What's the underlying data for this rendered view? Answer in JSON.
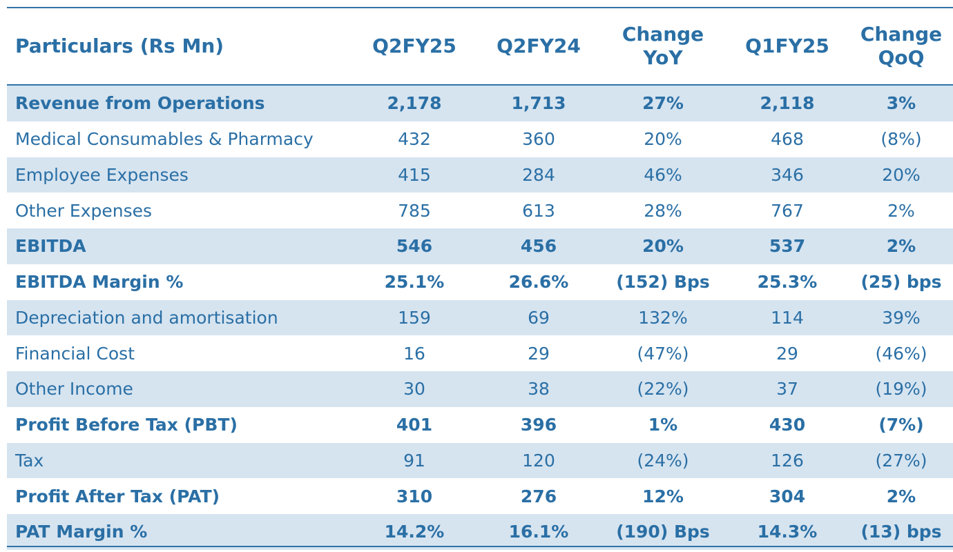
{
  "table": {
    "header": [
      "Particulars (Rs Mn)",
      "Q2FY25",
      "Q2FY24",
      "Change\nYoY",
      "Q1FY25",
      "Change\nQoQ"
    ],
    "rows": [
      {
        "cells": [
          "Revenue from Operations",
          "2,178",
          "1,713",
          "27%",
          "2,118",
          "3%"
        ],
        "bold": true,
        "shaded": true
      },
      {
        "cells": [
          "Medical Consumables & Pharmacy",
          "432",
          "360",
          "20%",
          "468",
          "(8%)"
        ],
        "bold": false,
        "shaded": false
      },
      {
        "cells": [
          "Employee Expenses",
          "415",
          "284",
          "46%",
          "346",
          "20%"
        ],
        "bold": false,
        "shaded": true
      },
      {
        "cells": [
          "Other Expenses",
          "785",
          "613",
          "28%",
          "767",
          "2%"
        ],
        "bold": false,
        "shaded": false
      },
      {
        "cells": [
          "EBITDA",
          "546",
          "456",
          "20%",
          "537",
          "2%"
        ],
        "bold": true,
        "shaded": true
      },
      {
        "cells": [
          "EBITDA Margin %",
          "25.1%",
          "26.6%",
          "(152) Bps",
          "25.3%",
          "(25) bps"
        ],
        "bold": true,
        "shaded": false
      },
      {
        "cells": [
          "Depreciation and amortisation",
          "159",
          "69",
          "132%",
          "114",
          "39%"
        ],
        "bold": false,
        "shaded": true
      },
      {
        "cells": [
          "Financial Cost",
          "16",
          "29",
          "(47%)",
          "29",
          "(46%)"
        ],
        "bold": false,
        "shaded": false
      },
      {
        "cells": [
          "Other Income",
          "30",
          "38",
          "(22%)",
          "37",
          "(19%)"
        ],
        "bold": false,
        "shaded": true
      },
      {
        "cells": [
          "Profit Before Tax (PBT)",
          "401",
          "396",
          "1%",
          "430",
          "(7%)"
        ],
        "bold": true,
        "shaded": false
      },
      {
        "cells": [
          "Tax",
          "91",
          "120",
          "(24%)",
          "126",
          "(27%)"
        ],
        "bold": false,
        "shaded": true
      },
      {
        "cells": [
          "Profit After Tax (PAT)",
          "310",
          "276",
          "12%",
          "304",
          "2%"
        ],
        "bold": true,
        "shaded": false
      },
      {
        "cells": [
          "PAT Margin %",
          "14.2%",
          "16.1%",
          "(190) Bps",
          "14.3%",
          "(13) bps"
        ],
        "bold": true,
        "shaded": true
      }
    ]
  },
  "colors": {
    "text": "#2a6fa5",
    "rule": "#2e73a8",
    "shade": "#d6e4f0"
  }
}
